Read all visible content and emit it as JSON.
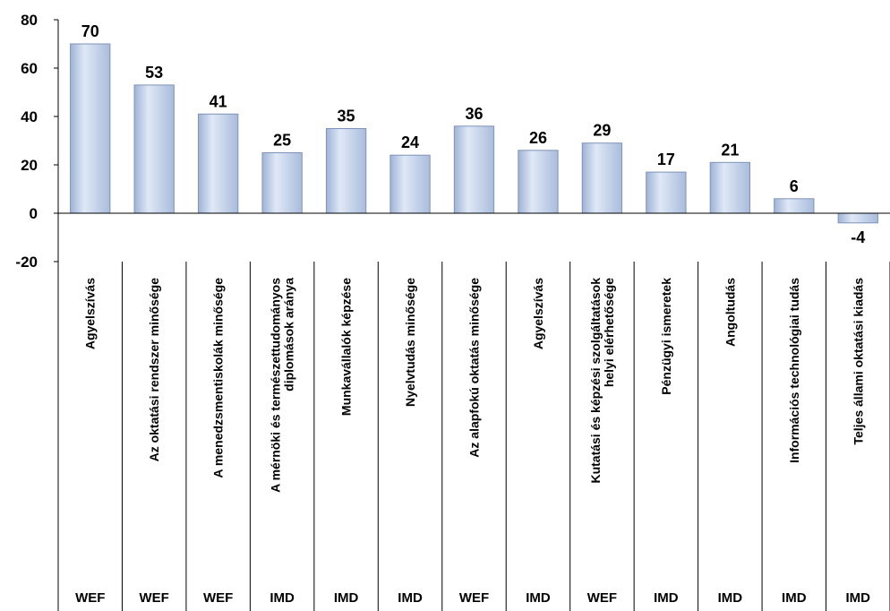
{
  "chart_data": {
    "type": "bar",
    "categories": [
      "Agyelszívás",
      "Az oktatási rendszer minősége",
      "A menedzsmentiskolák minősége",
      "A mérnöki és természettudományos diplomások aránya",
      "Munkavállalók képzése",
      "Nyelvtudás minősége",
      "Az alapfokú oktatás minősége",
      "Agyelszívás",
      "Kutatási és képzési szolgáltatások helyi elérhetősége",
      "Pénzügyi ismeretek",
      "Angoltudás",
      "Információs technológiai tudás",
      "Teljes állami oktatási kiadás"
    ],
    "groups": [
      "WEF",
      "WEF",
      "WEF",
      "IMD",
      "IMD",
      "IMD",
      "WEF",
      "IMD",
      "WEF",
      "IMD",
      "IMD",
      "IMD",
      "IMD"
    ],
    "values": [
      70,
      53,
      41,
      25,
      35,
      24,
      36,
      26,
      29,
      17,
      21,
      6,
      -4
    ],
    "color": "#bfd0ea",
    "ylim": [
      -20,
      80
    ],
    "yticks": [
      -20,
      0,
      20,
      40,
      60,
      80
    ]
  }
}
